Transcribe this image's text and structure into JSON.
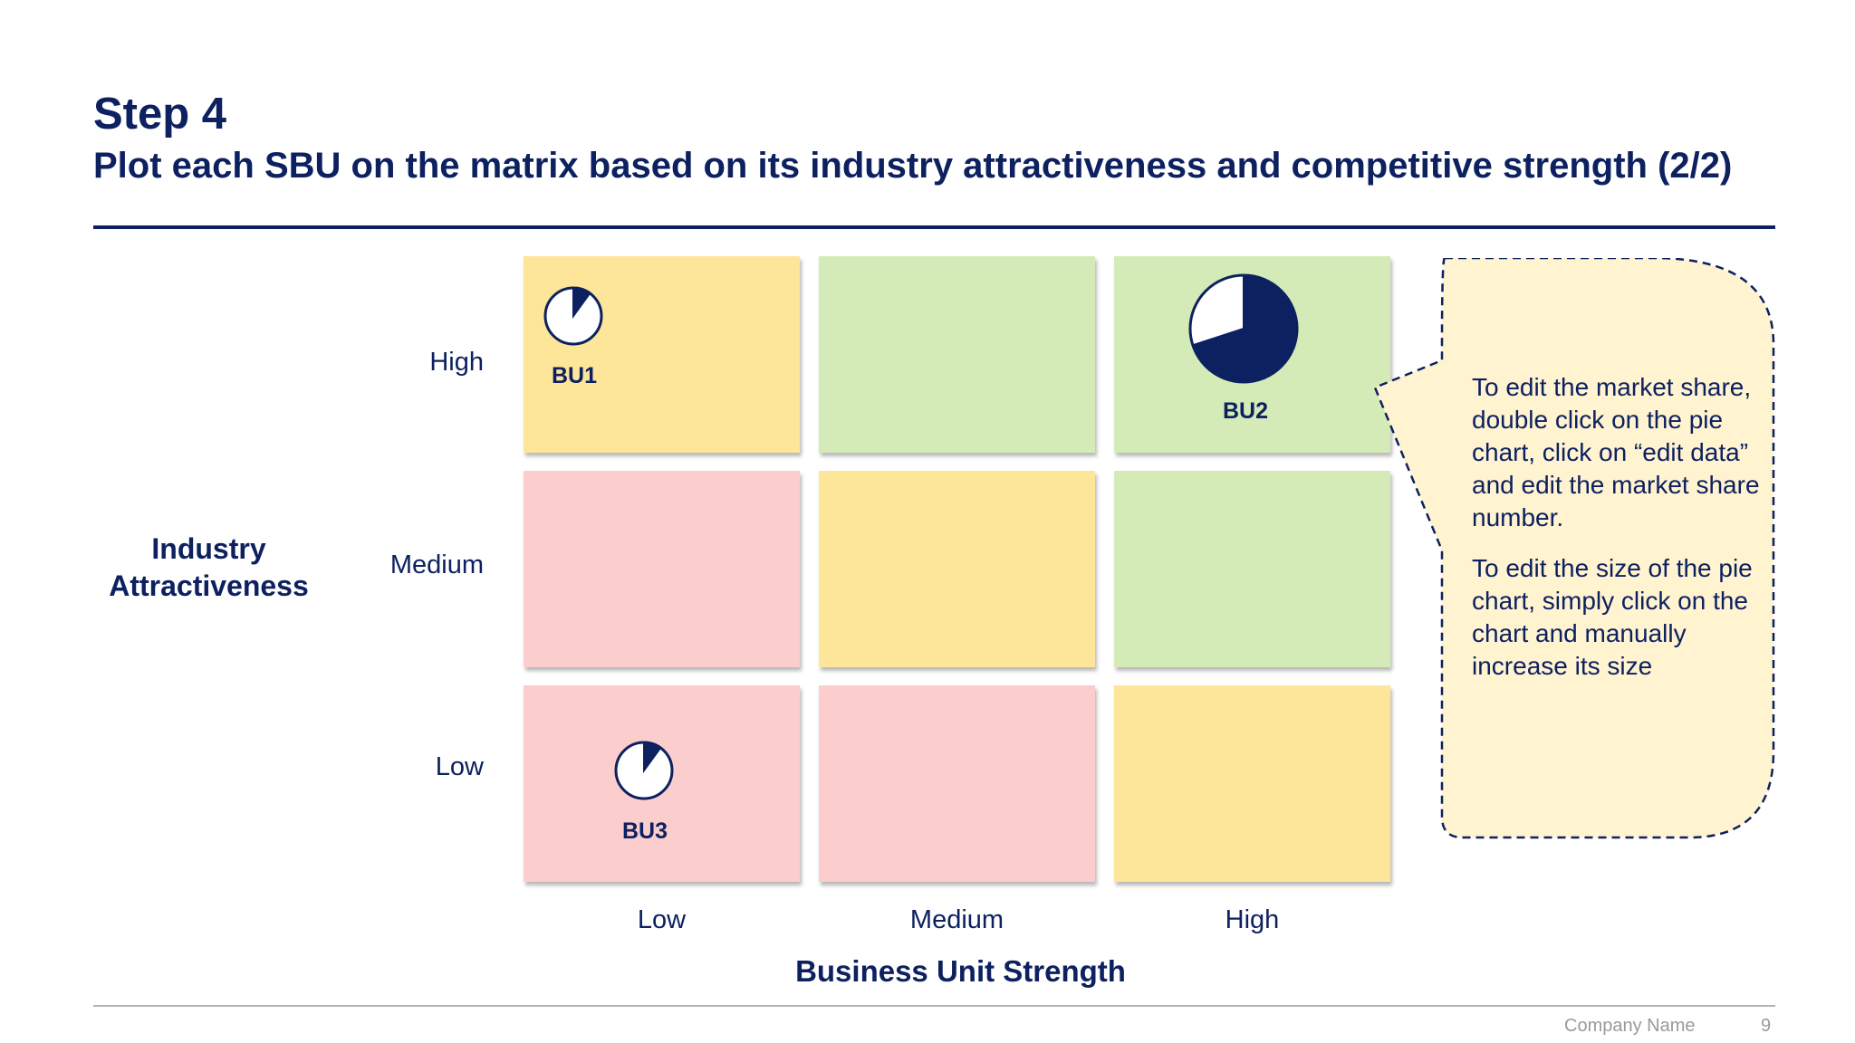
{
  "header": {
    "title": "Step 4",
    "subtitle": "Plot each SBU on the matrix based on its industry attractiveness and competitive strength (2/2)"
  },
  "matrix": {
    "y_axis_title": "Industry Attractiveness",
    "x_axis_title": "Business Unit Strength",
    "y_ticks": [
      "High",
      "Medium",
      "Low"
    ],
    "x_ticks": [
      "Low",
      "Medium",
      "High"
    ],
    "cell_colors": {
      "yellow": "#fde699",
      "green": "#d4ebb7",
      "red": "#fccdcd"
    },
    "rows": [
      [
        "yellow",
        "green",
        "green"
      ],
      [
        "red",
        "yellow",
        "green"
      ],
      [
        "red",
        "red",
        "yellow"
      ]
    ],
    "units": [
      {
        "label": "BU1",
        "attractiveness": "High",
        "strength": "Low",
        "market_share": 0.1,
        "relative_size": "small"
      },
      {
        "label": "BU2",
        "attractiveness": "High",
        "strength": "High",
        "market_share": 0.7,
        "relative_size": "large"
      },
      {
        "label": "BU3",
        "attractiveness": "Low",
        "strength": "Low",
        "market_share": 0.1,
        "relative_size": "small"
      }
    ]
  },
  "note": {
    "paragraph_1": "To edit the market share, double click on the pie chart, click on “edit data” and edit the market share number.",
    "paragraph_2": "To edit the size of the pie chart, simply click on the chart and manually increase its size"
  },
  "footer": {
    "company": "Company Name",
    "page": "9"
  },
  "colors": {
    "navy": "#0d2160",
    "footer_gray": "#9a9a9a"
  }
}
